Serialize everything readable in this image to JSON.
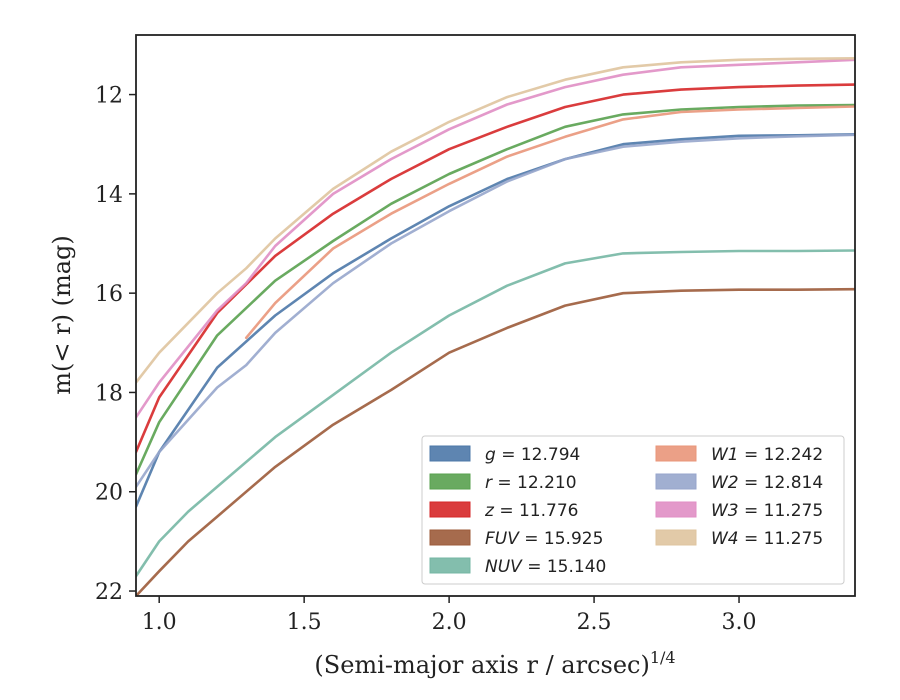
{
  "chart_data": {
    "type": "line",
    "xlabel": "(Semi-major axis r / arcsec)",
    "xlabel_exponent": "1/4",
    "ylabel": "m(< r) (mag)",
    "xlim": [
      0.92,
      3.4
    ],
    "ylim": [
      22.1,
      10.8
    ],
    "y_inverted": true,
    "x_ticks": [
      1.0,
      1.5,
      2.0,
      2.5,
      3.0
    ],
    "x_tick_labels": [
      "1.0",
      "1.5",
      "2.0",
      "2.5",
      "3.0"
    ],
    "y_ticks": [
      12,
      14,
      16,
      18,
      20,
      22
    ],
    "y_tick_labels": [
      "12",
      "14",
      "16",
      "18",
      "20",
      "22"
    ],
    "grid": false,
    "legend_position": "lower-right",
    "series": [
      {
        "name": "g",
        "value": "12.794",
        "color": "#4c78a8",
        "x": [
          0.92,
          1.0,
          1.2,
          1.4,
          1.6,
          1.8,
          2.0,
          2.2,
          2.4,
          2.6,
          2.8,
          3.0,
          3.2,
          3.4
        ],
        "y": [
          20.3,
          19.2,
          17.5,
          16.45,
          15.6,
          14.9,
          14.25,
          13.7,
          13.3,
          13.0,
          12.9,
          12.83,
          12.82,
          12.8
        ]
      },
      {
        "name": "r",
        "value": "12.210",
        "color": "#59a14f",
        "x": [
          0.92,
          1.0,
          1.2,
          1.4,
          1.6,
          1.8,
          2.0,
          2.2,
          2.4,
          2.6,
          2.8,
          3.0,
          3.2,
          3.4
        ],
        "y": [
          19.65,
          18.6,
          16.85,
          15.75,
          14.95,
          14.2,
          13.6,
          13.1,
          12.65,
          12.4,
          12.3,
          12.25,
          12.22,
          12.21
        ]
      },
      {
        "name": "z",
        "value": "11.776",
        "color": "#d62728",
        "x": [
          0.92,
          1.0,
          1.2,
          1.4,
          1.6,
          1.8,
          2.0,
          2.2,
          2.4,
          2.6,
          2.8,
          3.0,
          3.2,
          3.4
        ],
        "y": [
          19.2,
          18.1,
          16.4,
          15.25,
          14.4,
          13.7,
          13.1,
          12.65,
          12.25,
          12.0,
          11.9,
          11.85,
          11.82,
          11.8
        ]
      },
      {
        "name": "FUV",
        "value": "15.925",
        "color": "#9c5b3a",
        "x": [
          0.92,
          1.0,
          1.1,
          1.2,
          1.4,
          1.6,
          1.8,
          2.0,
          2.2,
          2.4,
          2.6,
          2.8,
          3.0,
          3.2,
          3.4
        ],
        "y": [
          22.1,
          21.6,
          21.0,
          20.5,
          19.5,
          18.65,
          17.95,
          17.2,
          16.7,
          16.25,
          16.0,
          15.95,
          15.93,
          15.93,
          15.92
        ]
      },
      {
        "name": "NUV",
        "value": "15.140",
        "color": "#76b7a4",
        "x": [
          0.92,
          1.0,
          1.1,
          1.2,
          1.4,
          1.6,
          1.8,
          2.0,
          2.2,
          2.4,
          2.6,
          2.8,
          3.0,
          3.2,
          3.4
        ],
        "y": [
          21.7,
          21.0,
          20.4,
          19.9,
          18.9,
          18.05,
          17.2,
          16.45,
          15.85,
          15.4,
          15.2,
          15.17,
          15.15,
          15.15,
          15.14
        ]
      },
      {
        "name": "W1",
        "value": "12.242",
        "color": "#e9967a",
        "x": [
          1.3,
          1.4,
          1.6,
          1.8,
          2.0,
          2.2,
          2.4,
          2.6,
          2.8,
          3.0,
          3.2,
          3.4
        ],
        "y": [
          16.9,
          16.2,
          15.1,
          14.4,
          13.8,
          13.25,
          12.85,
          12.5,
          12.35,
          12.3,
          12.27,
          12.24
        ]
      },
      {
        "name": "W2",
        "value": "12.814",
        "color": "#97a6cc",
        "x": [
          0.92,
          1.0,
          1.2,
          1.3,
          1.4,
          1.6,
          1.8,
          2.0,
          2.2,
          2.4,
          2.6,
          2.8,
          3.0,
          3.2,
          3.4
        ],
        "y": [
          19.9,
          19.2,
          17.9,
          17.45,
          16.8,
          15.8,
          15.0,
          14.35,
          13.75,
          13.3,
          13.05,
          12.95,
          12.88,
          12.84,
          12.81
        ]
      },
      {
        "name": "W3",
        "value": "11.275",
        "color": "#e08ec4",
        "x": [
          0.92,
          1.0,
          1.2,
          1.3,
          1.4,
          1.6,
          1.8,
          2.0,
          2.2,
          2.4,
          2.6,
          2.8,
          3.0,
          3.2,
          3.4
        ],
        "y": [
          18.5,
          17.8,
          16.35,
          15.8,
          15.05,
          14.0,
          13.3,
          12.7,
          12.2,
          11.85,
          11.6,
          11.45,
          11.4,
          11.35,
          11.3
        ]
      },
      {
        "name": "W4",
        "value": "11.275",
        "color": "#dfc49f",
        "x": [
          0.92,
          1.0,
          1.2,
          1.3,
          1.4,
          1.6,
          1.8,
          2.0,
          2.2,
          2.4,
          2.6,
          2.8,
          3.0,
          3.2,
          3.4
        ],
        "y": [
          17.8,
          17.2,
          16.0,
          15.5,
          14.9,
          13.9,
          13.15,
          12.55,
          12.05,
          11.7,
          11.45,
          11.35,
          11.3,
          11.28,
          11.27
        ]
      }
    ]
  }
}
